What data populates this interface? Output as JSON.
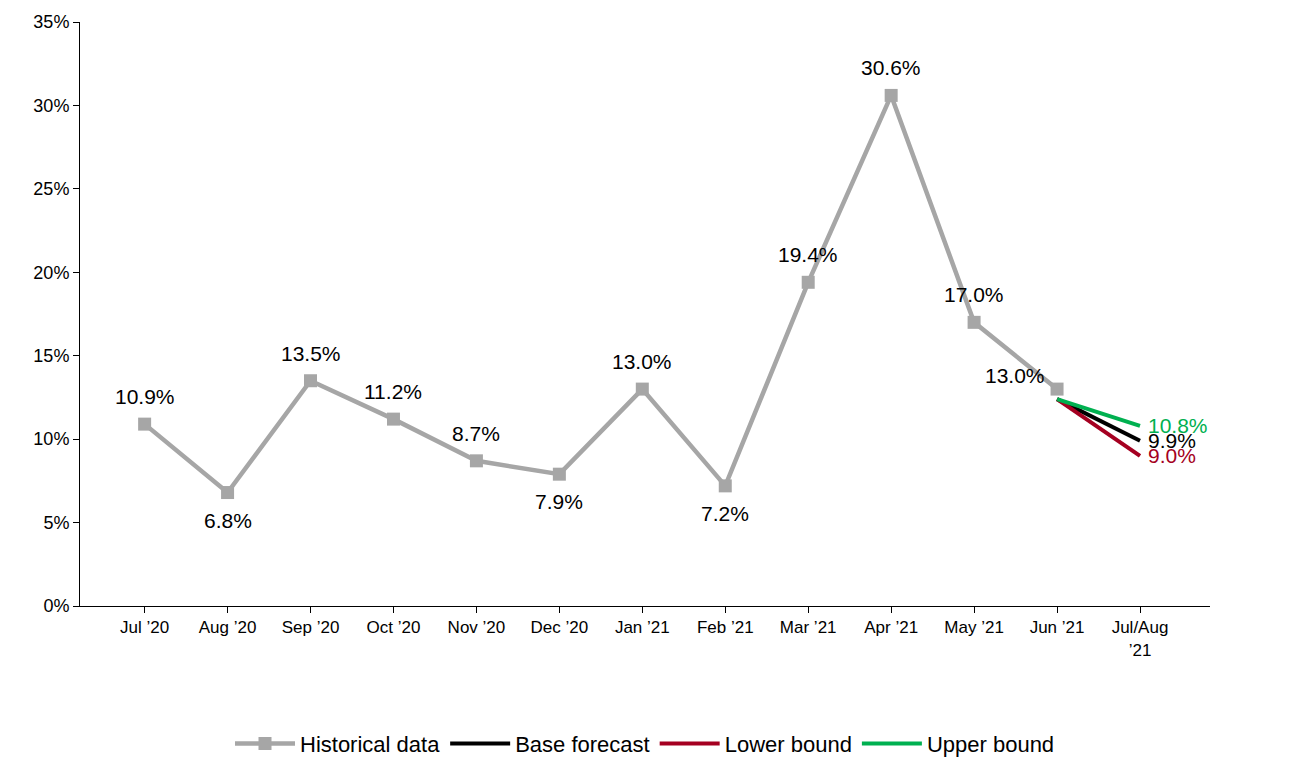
{
  "chart_data": {
    "type": "line",
    "categories": [
      "Jul ’20",
      "Aug ’20",
      "Sep ’20",
      "Oct ’20",
      "Nov ’20",
      "Dec ’20",
      "Jan ’21",
      "Feb ’21",
      "Mar ’21",
      "Apr ’21",
      "May ’21",
      "Jun ’21",
      "Jul/Aug ’21"
    ],
    "series": [
      {
        "name": "Historical data",
        "color": "#a6a6a6",
        "marker": "square",
        "values": [
          10.9,
          6.8,
          13.5,
          11.2,
          8.7,
          7.9,
          13.0,
          7.2,
          19.4,
          30.6,
          17.0,
          13.0,
          null
        ],
        "value_labels": [
          "10.9%",
          "6.8%",
          "13.5%",
          "11.2%",
          "8.7%",
          "7.9%",
          "13.0%",
          "7.2%",
          "19.4%",
          "30.6%",
          "17.0%",
          "13.0%",
          null
        ]
      },
      {
        "name": "Base forecast",
        "color": "#000000",
        "values": [
          null,
          null,
          null,
          null,
          null,
          null,
          null,
          null,
          null,
          null,
          null,
          12.4,
          9.9
        ],
        "value_labels": [
          null,
          null,
          null,
          null,
          null,
          null,
          null,
          null,
          null,
          null,
          null,
          null,
          "9.9%"
        ]
      },
      {
        "name": "Lower bound",
        "color": "#a50021",
        "values": [
          null,
          null,
          null,
          null,
          null,
          null,
          null,
          null,
          null,
          null,
          null,
          12.4,
          9.0
        ],
        "value_labels": [
          null,
          null,
          null,
          null,
          null,
          null,
          null,
          null,
          null,
          null,
          null,
          null,
          "9.0%"
        ]
      },
      {
        "name": "Upper bound",
        "color": "#00b050",
        "values": [
          null,
          null,
          null,
          null,
          null,
          null,
          null,
          null,
          null,
          null,
          null,
          12.4,
          10.8
        ],
        "value_labels": [
          null,
          null,
          null,
          null,
          null,
          null,
          null,
          null,
          null,
          null,
          null,
          null,
          "10.8%"
        ]
      }
    ],
    "ylim": [
      0,
      35
    ],
    "yticks": [
      {
        "value": 0,
        "label": "0%"
      },
      {
        "value": 5,
        "label": "5%"
      },
      {
        "value": 10,
        "label": "10%"
      },
      {
        "value": 15,
        "label": "15%"
      },
      {
        "value": 20,
        "label": "20%"
      },
      {
        "value": 25,
        "label": "25%"
      },
      {
        "value": 30,
        "label": "30%"
      },
      {
        "value": 35,
        "label": "35%"
      }
    ],
    "grid": false,
    "legend": "bottom",
    "data_labels": true
  }
}
